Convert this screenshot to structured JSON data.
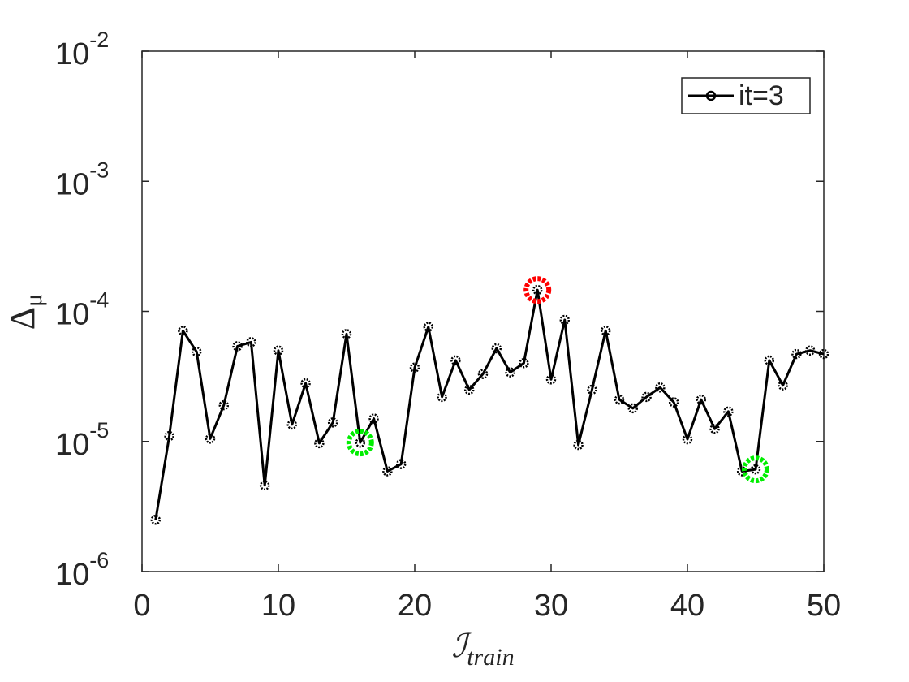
{
  "chart_data": {
    "type": "line",
    "xlabel": "ℐ_train",
    "ylabel": "Δ_μ",
    "x": [
      1,
      2,
      3,
      4,
      5,
      6,
      7,
      8,
      9,
      10,
      11,
      12,
      13,
      14,
      15,
      16,
      17,
      18,
      19,
      20,
      21,
      22,
      23,
      24,
      25,
      26,
      27,
      28,
      29,
      30,
      31,
      32,
      33,
      34,
      35,
      36,
      37,
      38,
      39,
      40,
      41,
      42,
      43,
      44,
      45,
      46,
      47,
      48,
      49,
      50
    ],
    "series": [
      {
        "name": "it=3",
        "color": "#000000",
        "values": [
          2.5e-06,
          1.1e-05,
          7.1e-05,
          4.9e-05,
          1.05e-05,
          1.9e-05,
          5.4e-05,
          5.8e-05,
          4.6e-06,
          5e-05,
          1.35e-05,
          2.8e-05,
          9.7e-06,
          1.4e-05,
          6.7e-05,
          9.8e-06,
          1.5e-05,
          5.9e-06,
          6.7e-06,
          3.7e-05,
          7.6e-05,
          2.2e-05,
          4.2e-05,
          2.5e-05,
          3.3e-05,
          5.2e-05,
          3.4e-05,
          4e-05,
          0.000146,
          3e-05,
          8.6e-05,
          9.4e-06,
          2.5e-05,
          7.1e-05,
          2.1e-05,
          1.8e-05,
          2.2e-05,
          2.6e-05,
          2e-05,
          1.04e-05,
          2.1e-05,
          1.25e-05,
          1.7e-05,
          5.9e-06,
          6.1e-06,
          4.2e-05,
          2.7e-05,
          4.7e-05,
          5e-05,
          4.7e-05
        ]
      }
    ],
    "highlights": [
      {
        "x": 29,
        "y": 0.000146,
        "color": "#ff0000"
      },
      {
        "x": 16,
        "y": 9.8e-06,
        "color": "#00ee00"
      },
      {
        "x": 45,
        "y": 6.1e-06,
        "color": "#00ee00"
      }
    ],
    "xlim": [
      0,
      50
    ],
    "xticks": [
      0,
      10,
      20,
      30,
      40,
      50
    ],
    "ylim": [
      1e-06,
      0.01
    ],
    "yticks": [
      {
        "value": 1e-06,
        "label": "10^-6"
      },
      {
        "value": 1e-05,
        "label": "10^-5"
      },
      {
        "value": 0.0001,
        "label": "10^-4"
      },
      {
        "value": 0.001,
        "label": "10^-3"
      },
      {
        "value": 0.01,
        "label": "10^-2"
      }
    ],
    "yscale": "log",
    "legend": "northeast"
  }
}
